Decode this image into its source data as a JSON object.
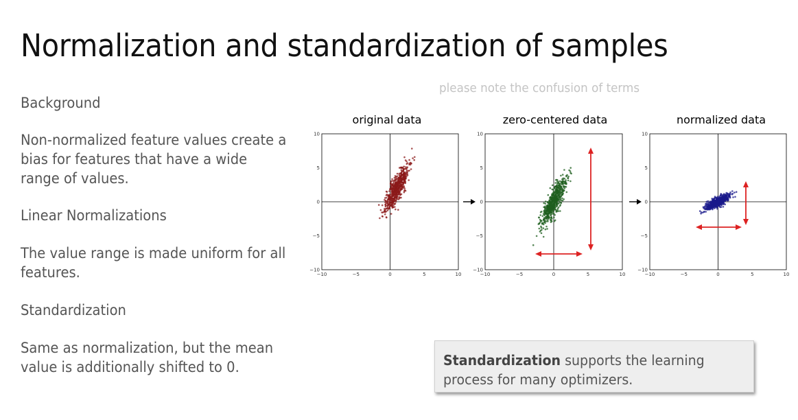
{
  "slide": {
    "title": "Normalization and standardization of samples",
    "note": "please note the confusion of terms",
    "sections": [
      {
        "heading": "Background",
        "body": "Non-normalized feature values create a bias for features that have a wide range of values."
      },
      {
        "heading": "Linear Normalizations",
        "body": "The value range is made uniform for all features."
      },
      {
        "heading": "Standardization",
        "body": "Same as normalization, but the mean value is additionally shifted to 0."
      }
    ],
    "callout": {
      "bold": "Standardization",
      "rest": " supports the learning process for many optimizers."
    }
  },
  "colors": {
    "original": "#8b1a1a",
    "zero_centered": "#1f5f1f",
    "normalized": "#1a1a8b",
    "arrow": "#dd2222"
  },
  "chart_data": [
    {
      "type": "scatter",
      "title": "original data",
      "xlim": [
        -10,
        10
      ],
      "ylim": [
        -10,
        10
      ],
      "xticks": [
        "−10",
        "−5",
        "0",
        "5",
        "10"
      ],
      "yticks": [
        "10",
        "5",
        "0",
        "−5",
        "−10"
      ],
      "mean": [
        1.0,
        2.0
      ],
      "major_sd": 3.0,
      "minor_sd": 0.45,
      "slope": 2.2
    },
    {
      "type": "scatter",
      "title": "zero-centered data",
      "xlim": [
        -10,
        10
      ],
      "ylim": [
        -10,
        10
      ],
      "xticks": [
        "−10",
        "−5",
        "0",
        "5",
        "10"
      ],
      "yticks": [
        "10",
        "5",
        "0",
        "−5",
        "−10"
      ],
      "mean": [
        0,
        0
      ],
      "major_sd": 3.0,
      "minor_sd": 0.45,
      "slope": 2.2
    },
    {
      "type": "scatter",
      "title": "normalized data",
      "xlim": [
        -10,
        10
      ],
      "ylim": [
        -10,
        10
      ],
      "xticks": [
        "−10",
        "−5",
        "0",
        "5",
        "10"
      ],
      "yticks": [
        "10",
        "5",
        "0",
        "−5",
        "−10"
      ],
      "mean": [
        0,
        0
      ],
      "major_sd": 1.6,
      "minor_sd": 0.3,
      "slope": 0.55
    }
  ]
}
